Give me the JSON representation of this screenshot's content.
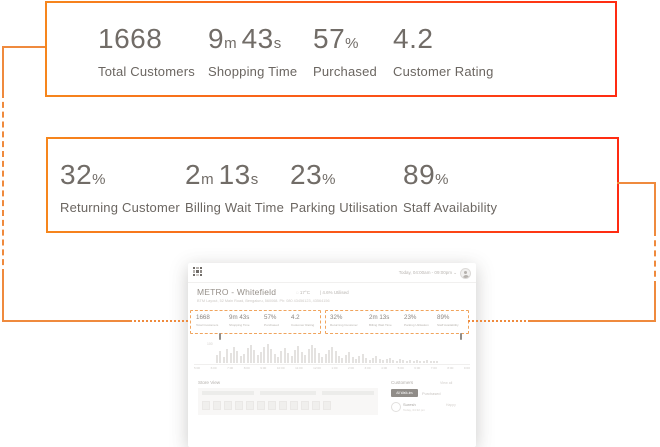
{
  "accent": {
    "connector_orange": "#ef8a3d",
    "border_gradient_start": "#f6861d",
    "border_gradient_end": "#ff2b12",
    "highlight_dash": "#f0a45d"
  },
  "kpi_top": {
    "stats": [
      {
        "v1": "1668",
        "u1": "",
        "v2": "",
        "u2": "",
        "label": "Total Customers"
      },
      {
        "v1": "9",
        "u1": "m",
        "v2": "43",
        "u2": "s",
        "label": "Shopping Time"
      },
      {
        "v1": "57",
        "u1": "%",
        "v2": "",
        "u2": "",
        "label": "Purchased"
      },
      {
        "v1": "4.2",
        "u1": "",
        "v2": "",
        "u2": "",
        "label": "Customer Rating"
      }
    ]
  },
  "kpi_bottom": {
    "stats": [
      {
        "v1": "32",
        "u1": "%",
        "v2": "",
        "u2": "",
        "label": "Returning Customer"
      },
      {
        "v1": "2",
        "u1": "m",
        "v2": "13",
        "u2": "s",
        "label": "Billing Wait Time"
      },
      {
        "v1": "23",
        "u1": "%",
        "v2": "",
        "u2": "",
        "label": "Parking Utilisation"
      },
      {
        "v1": "89",
        "u1": "%",
        "v2": "",
        "u2": "",
        "label": "Staff Availability"
      }
    ]
  },
  "dashboard": {
    "titlebar": {
      "date_range": "Today, 04:00am - 09:00pm",
      "chevron": "⌄"
    },
    "store": {
      "name": "METRO - Whitefield",
      "temperature": "◌ 17°C",
      "utilised": "| 4.6% Utilised",
      "address": "BTM Layout, 52 Main Road, Bengaluru, 560068. Ph: 080 43456123, 43564156"
    },
    "kpi_row_a": [
      {
        "value": "1668",
        "label": "Total Customers"
      },
      {
        "value": "9m 43s",
        "label": "Shopping Time"
      },
      {
        "value": "57%",
        "label": "Purchased"
      },
      {
        "value": "4.2",
        "label": "Customer Rating"
      }
    ],
    "kpi_row_b": [
      {
        "value": "32%",
        "label": "Returning Customer"
      },
      {
        "value": "2m 13s",
        "label": "Billing Wait Time"
      },
      {
        "value": "23%",
        "label": "Parking Utilisation"
      },
      {
        "value": "89%",
        "label": "Staff Availability"
      }
    ],
    "timeline": {
      "y_label": "100",
      "bars": [
        8,
        12,
        6,
        14,
        10,
        16,
        12,
        7,
        9,
        15,
        18,
        13,
        8,
        11,
        16,
        19,
        14,
        9,
        6,
        12,
        15,
        10,
        7,
        13,
        17,
        11,
        8,
        14,
        18,
        15,
        10,
        6,
        9,
        13,
        16,
        12,
        7,
        5,
        8,
        11,
        6,
        4,
        7,
        9,
        5,
        3,
        5,
        7,
        4,
        3,
        4,
        5,
        3,
        2,
        4,
        3,
        2,
        3,
        2,
        3,
        2,
        2,
        3,
        2,
        2,
        2
      ],
      "ticks": [
        "5:00",
        "6:00",
        "7:00",
        "8:00",
        "9:00",
        "10:00",
        "11:00",
        "12:00",
        "1:00",
        "2:00",
        "3:00",
        "4:00",
        "5:00",
        "6:00",
        "7:00",
        "8:00",
        "9:00"
      ]
    },
    "store_view": {
      "title": "Store View",
      "squares": 12
    },
    "customers": {
      "title": "Customers",
      "view_all": "View all",
      "tab_active": "All Walk-ins",
      "tab_inactive": "Purchased",
      "row": {
        "name": "Suresh",
        "time": "Today, 04:32 pm",
        "status": "Happy"
      }
    }
  }
}
